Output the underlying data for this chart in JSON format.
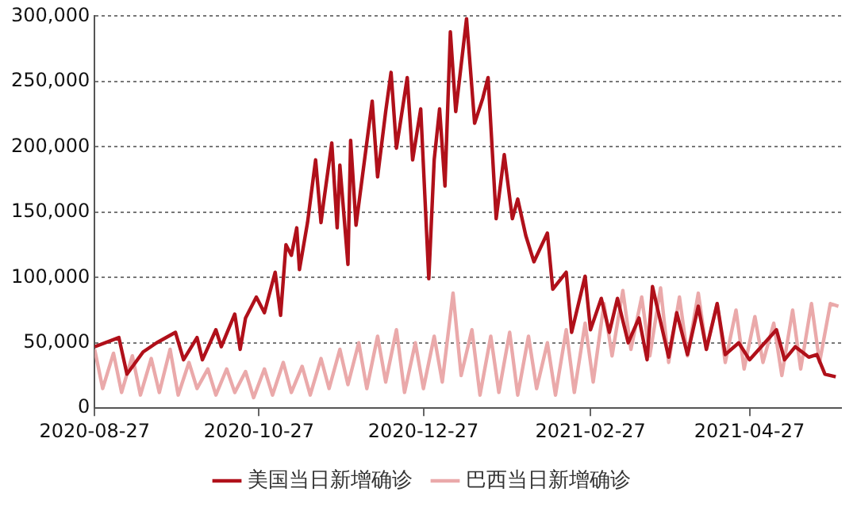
{
  "chart_data": {
    "type": "line",
    "xlim": [
      "2020-08-27",
      "2021-05-31"
    ],
    "xticks": [
      {
        "value": "2020-08-27",
        "label": "2020-08-27"
      },
      {
        "value": "2020-10-27",
        "label": "2020-10-27"
      },
      {
        "value": "2020-12-27",
        "label": "2020-12-27"
      },
      {
        "value": "2021-02-27",
        "label": "2021-02-27"
      },
      {
        "value": "2021-04-27",
        "label": "2021-04-27"
      }
    ],
    "ylim": [
      0,
      300000
    ],
    "yticks": [
      {
        "value": 0,
        "label": "0"
      },
      {
        "value": 50000,
        "label": "50,000"
      },
      {
        "value": 100000,
        "label": "100,000"
      },
      {
        "value": 150000,
        "label": "150,000"
      },
      {
        "value": 200000,
        "label": "200,000"
      },
      {
        "value": 250000,
        "label": "250,000"
      },
      {
        "value": 300000,
        "label": "300,000"
      }
    ],
    "grid": "y",
    "legend": "bottom",
    "marker": "none",
    "line_style": "solid",
    "series": [
      {
        "name": "美国当日新增确诊",
        "color": "#b0101a",
        "x": [
          "2020-08-27",
          "2020-09-05",
          "2020-09-08",
          "2020-09-14",
          "2020-09-19",
          "2020-09-26",
          "2020-09-29",
          "2020-10-04",
          "2020-10-06",
          "2020-10-11",
          "2020-10-13",
          "2020-10-18",
          "2020-10-20",
          "2020-10-22",
          "2020-10-26",
          "2020-10-29",
          "2020-11-02",
          "2020-11-04",
          "2020-11-06",
          "2020-11-08",
          "2020-11-10",
          "2020-11-11",
          "2020-11-14",
          "2020-11-17",
          "2020-11-19",
          "2020-11-20",
          "2020-11-23",
          "2020-11-25",
          "2020-11-26",
          "2020-11-29",
          "2020-11-30",
          "2020-12-02",
          "2020-12-08",
          "2020-12-10",
          "2020-12-13",
          "2020-12-15",
          "2020-12-17",
          "2020-12-21",
          "2020-12-23",
          "2020-12-26",
          "2020-12-29",
          "2020-12-31",
          "2021-01-02",
          "2021-01-04",
          "2021-01-06",
          "2021-01-08",
          "2021-01-12",
          "2021-01-15",
          "2021-01-18",
          "2021-01-20",
          "2021-01-23",
          "2021-01-26",
          "2021-01-29",
          "2021-01-31",
          "2021-02-03",
          "2021-02-06",
          "2021-02-11",
          "2021-02-13",
          "2021-02-18",
          "2021-02-20",
          "2021-02-25",
          "2021-02-27",
          "2021-03-03",
          "2021-03-06",
          "2021-03-09",
          "2021-03-13",
          "2021-03-17",
          "2021-03-20",
          "2021-03-22",
          "2021-03-28",
          "2021-03-31",
          "2021-04-04",
          "2021-04-08",
          "2021-04-11",
          "2021-04-15",
          "2021-04-18",
          "2021-04-23",
          "2021-04-27",
          "2021-05-07",
          "2021-05-10",
          "2021-05-14",
          "2021-05-19",
          "2021-05-22",
          "2021-05-25",
          "2021-05-29"
        ],
        "values": [
          47000,
          54000,
          26000,
          43000,
          50000,
          58000,
          37000,
          54000,
          37000,
          60000,
          47000,
          72000,
          45000,
          69000,
          85000,
          73000,
          104000,
          71000,
          125000,
          117000,
          138000,
          106000,
          142000,
          190000,
          142000,
          158000,
          203000,
          138000,
          186000,
          110000,
          205000,
          140000,
          235000,
          177000,
          227000,
          257000,
          199000,
          253000,
          190000,
          229000,
          99000,
          190000,
          229000,
          170000,
          288000,
          227000,
          298000,
          218000,
          237000,
          253000,
          145000,
          194000,
          145000,
          160000,
          132000,
          112000,
          134000,
          91000,
          104000,
          58000,
          101000,
          60000,
          84000,
          58000,
          84000,
          50000,
          69000,
          37000,
          93000,
          39000,
          73000,
          41000,
          78000,
          45000,
          80000,
          41000,
          50000,
          37000,
          60000,
          37000,
          47000,
          39000,
          41000,
          26000,
          24000
        ]
      },
      {
        "name": "巴西当日新增确诊",
        "color": "#eaa9aa",
        "x": [
          "2020-08-27",
          "2020-08-30",
          "2020-09-03",
          "2020-09-06",
          "2020-09-10",
          "2020-09-13",
          "2020-09-17",
          "2020-09-20",
          "2020-09-24",
          "2020-09-27",
          "2020-10-01",
          "2020-10-04",
          "2020-10-08",
          "2020-10-11",
          "2020-10-15",
          "2020-10-18",
          "2020-10-22",
          "2020-10-25",
          "2020-10-29",
          "2020-11-01",
          "2020-11-05",
          "2020-11-08",
          "2020-11-12",
          "2020-11-15",
          "2020-11-19",
          "2020-11-22",
          "2020-11-26",
          "2020-11-29",
          "2020-12-03",
          "2020-12-06",
          "2020-12-10",
          "2020-12-13",
          "2020-12-17",
          "2020-12-20",
          "2020-12-24",
          "2020-12-27",
          "2020-12-31",
          "2021-01-03",
          "2021-01-07",
          "2021-01-10",
          "2021-01-14",
          "2021-01-17",
          "2021-01-21",
          "2021-01-24",
          "2021-01-28",
          "2021-01-31",
          "2021-02-04",
          "2021-02-07",
          "2021-02-11",
          "2021-02-14",
          "2021-02-18",
          "2021-02-21",
          "2021-02-25",
          "2021-02-28",
          "2021-03-04",
          "2021-03-07",
          "2021-03-11",
          "2021-03-14",
          "2021-03-18",
          "2021-03-21",
          "2021-03-25",
          "2021-03-28",
          "2021-04-01",
          "2021-04-04",
          "2021-04-08",
          "2021-04-11",
          "2021-04-15",
          "2021-04-18",
          "2021-04-22",
          "2021-04-25",
          "2021-04-29",
          "2021-05-02",
          "2021-05-06",
          "2021-05-09",
          "2021-05-13",
          "2021-05-16",
          "2021-05-20",
          "2021-05-23",
          "2021-05-27",
          "2021-05-30"
        ],
        "values": [
          45000,
          15000,
          42000,
          12000,
          40000,
          10000,
          38000,
          12000,
          45000,
          10000,
          35000,
          15000,
          30000,
          10000,
          30000,
          12000,
          28000,
          8000,
          30000,
          10000,
          35000,
          12000,
          32000,
          10000,
          38000,
          15000,
          45000,
          18000,
          50000,
          15000,
          55000,
          20000,
          60000,
          12000,
          50000,
          15000,
          55000,
          20000,
          88000,
          25000,
          60000,
          10000,
          55000,
          12000,
          58000,
          10000,
          55000,
          15000,
          50000,
          10000,
          60000,
          12000,
          65000,
          20000,
          80000,
          40000,
          90000,
          45000,
          85000,
          40000,
          92000,
          35000,
          85000,
          40000,
          88000,
          45000,
          80000,
          35000,
          75000,
          30000,
          70000,
          35000,
          65000,
          25000,
          75000,
          30000,
          80000,
          35000,
          80000,
          78000
        ]
      }
    ]
  }
}
